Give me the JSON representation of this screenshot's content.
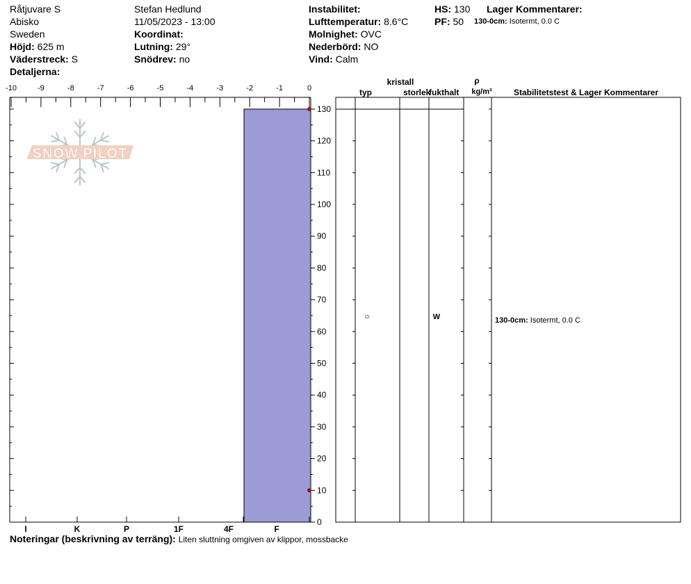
{
  "header": {
    "location": "Råtjuvare S",
    "region": "Abisko",
    "country": "Sweden",
    "elevation_label": "Höjd:",
    "elevation_value": "625 m",
    "aspect_label": "Väderstreck:",
    "aspect_value": "S",
    "details_label": "Detaljerna:",
    "observer": "Stefan Hedlund",
    "datetime": "11/05/2023 - 13:00",
    "coord_label": "Koordinat:",
    "slope_label": "Lutning:",
    "slope_value": "29°",
    "drift_label": "Snödrev:",
    "drift_value": "no",
    "instability_label": "Instabilitet:",
    "airtemp_label": "Lufttemperatur:",
    "airtemp_value": "8.6°C",
    "cloud_label": "Molnighet:",
    "cloud_value": "OVC",
    "precip_label": "Nederbörd:",
    "precip_value": "NO",
    "wind_label": "Vind:",
    "wind_value": "Calm",
    "hs_label": "HS:",
    "hs_value": "130",
    "pf_label": "PF:",
    "pf_value": "50",
    "layer_comments_label": "Lager Kommentarer:",
    "layer_comment_depth": "130-0cm:",
    "layer_comment_text": "Isotermt, 0.0 C"
  },
  "table": {
    "crystal_label": "kristall",
    "type_label": "typ",
    "size_label": "storlek",
    "moisture_label": "fukthalt",
    "rho_label": "ρ",
    "density_unit": "kg/m³",
    "stability_label": "Stabilitetstest & Lager Kommentarer",
    "layer_type_symbol": "○",
    "layer_moisture": "W",
    "comment_depth": "130-0cm:",
    "comment_text": "Isotermt, 0.0 C"
  },
  "logo_text": "SNOW PILOT",
  "footer": {
    "notes_label": "Noteringar (beskrivning av terräng):",
    "notes_text": "Liten sluttning omgiven av klippor, mossbacke"
  },
  "colors": {
    "layer_fill": "#9b9bd6",
    "marker": "#8b1a1a",
    "logo_fill": "#f1d2c4",
    "logo_flake": "#b9c6cf"
  },
  "chart_data": {
    "type": "bar",
    "orientation": "horizontal",
    "y_axis": {
      "label": "",
      "range": [
        0,
        130
      ],
      "ticks": [
        0,
        10,
        20,
        30,
        40,
        50,
        60,
        70,
        80,
        90,
        100,
        110,
        120,
        130
      ]
    },
    "x_axis_top": {
      "label": "",
      "range": [
        -10,
        0
      ],
      "ticks": [
        -10,
        -9,
        -8,
        -7,
        -6,
        -5,
        -4,
        -3,
        -2,
        -1,
        0
      ]
    },
    "x_axis_bottom": {
      "label": "",
      "hardness_ticks": [
        "I",
        "K",
        "P",
        "1F",
        "4F",
        "F"
      ]
    },
    "layers": [
      {
        "top_cm": 130,
        "bottom_cm": 0,
        "hardness": "F",
        "grain_type": "○",
        "moisture": "W"
      }
    ],
    "temperature_points": [
      {
        "depth_cm": 130,
        "temp_c": 0.0
      },
      {
        "depth_cm": 10,
        "temp_c": 0.0
      }
    ]
  }
}
